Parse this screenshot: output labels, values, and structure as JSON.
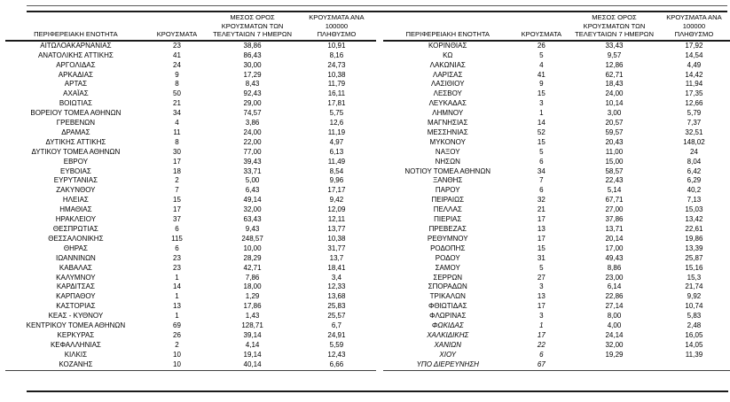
{
  "columns": {
    "region": "ΠΕΡΙΦΕΡΕΙΑΚΗ ΕΝΟΤΗΤΑ",
    "cases": "ΚΡΟΥΣΜΑΤΑ",
    "avg7": "ΜΕΣΟΣ ΟΡΟΣ\nΚΡΟΥΣΜΑΤΩΝ ΤΩΝ\nΤΕΛΕΥΤΑΙΩΝ 7 ΗΜΕΡΩΝ",
    "per100k": "ΚΡΟΥΣΜΑΤΑ ΑΝΑ 100000\nΠΛΗΘΥΣΜΟ"
  },
  "left_table": {
    "rows": [
      {
        "region": "ΑΙΤΩΛΟΑΚΑΡΝΑΝΙΑΣ",
        "cases": "23",
        "avg7": "38,86",
        "per100k": "10,91"
      },
      {
        "region": "ΑΝΑΤΟΛΙΚΗΣ ΑΤΤΙΚΗΣ",
        "cases": "41",
        "avg7": "86,43",
        "per100k": "8,16"
      },
      {
        "region": "ΑΡΓΟΛΙΔΑΣ",
        "cases": "24",
        "avg7": "30,00",
        "per100k": "24,73"
      },
      {
        "region": "ΑΡΚΑΔΙΑΣ",
        "cases": "9",
        "avg7": "17,29",
        "per100k": "10,38"
      },
      {
        "region": "ΑΡΤΑΣ",
        "cases": "8",
        "avg7": "8,43",
        "per100k": "11,79"
      },
      {
        "region": "ΑΧΑΪΑΣ",
        "cases": "50",
        "avg7": "92,43",
        "per100k": "16,11"
      },
      {
        "region": "ΒΟΙΩΤΙΑΣ",
        "cases": "21",
        "avg7": "29,00",
        "per100k": "17,81"
      },
      {
        "region": "ΒΟΡΕΙΟΥ ΤΟΜΕΑ ΑΘΗΝΩΝ",
        "cases": "34",
        "avg7": "74,57",
        "per100k": "5,75"
      },
      {
        "region": "ΓΡΕΒΕΝΩΝ",
        "cases": "4",
        "avg7": "3,86",
        "per100k": "12,6"
      },
      {
        "region": "ΔΡΑΜΑΣ",
        "cases": "11",
        "avg7": "24,00",
        "per100k": "11,19"
      },
      {
        "region": "ΔΥΤΙΚΗΣ ΑΤΤΙΚΗΣ",
        "cases": "8",
        "avg7": "22,00",
        "per100k": "4,97"
      },
      {
        "region": "ΔΥΤΙΚΟΥ ΤΟΜΕΑ ΑΘΗΝΩΝ",
        "cases": "30",
        "avg7": "77,00",
        "per100k": "6,13"
      },
      {
        "region": "ΕΒΡΟΥ",
        "cases": "17",
        "avg7": "39,43",
        "per100k": "11,49"
      },
      {
        "region": "ΕΥΒΟΙΑΣ",
        "cases": "18",
        "avg7": "33,71",
        "per100k": "8,54"
      },
      {
        "region": "ΕΥΡΥΤΑΝΙΑΣ",
        "cases": "2",
        "avg7": "5,00",
        "per100k": "9,96"
      },
      {
        "region": "ΖΑΚΥΝΘΟΥ",
        "cases": "7",
        "avg7": "6,43",
        "per100k": "17,17"
      },
      {
        "region": "ΗΛΕΙΑΣ",
        "cases": "15",
        "avg7": "49,14",
        "per100k": "9,42"
      },
      {
        "region": "ΗΜΑΘΙΑΣ",
        "cases": "17",
        "avg7": "32,00",
        "per100k": "12,09"
      },
      {
        "region": "ΗΡΑΚΛΕΙΟΥ",
        "cases": "37",
        "avg7": "63,43",
        "per100k": "12,11"
      },
      {
        "region": "ΘΕΣΠΡΩΤΙΑΣ",
        "cases": "6",
        "avg7": "9,43",
        "per100k": "13,77"
      },
      {
        "region": "ΘΕΣΣΑΛΟΝΙΚΗΣ",
        "cases": "115",
        "avg7": "248,57",
        "per100k": "10,38"
      },
      {
        "region": "ΘΗΡΑΣ",
        "cases": "6",
        "avg7": "10,00",
        "per100k": "31,77"
      },
      {
        "region": "ΙΩΑΝΝΙΝΩΝ",
        "cases": "23",
        "avg7": "28,29",
        "per100k": "13,7"
      },
      {
        "region": "ΚΑΒΑΛΑΣ",
        "cases": "23",
        "avg7": "42,71",
        "per100k": "18,41"
      },
      {
        "region": "ΚΑΛΥΜΝΟΥ",
        "cases": "1",
        "avg7": "7,86",
        "per100k": "3,4"
      },
      {
        "region": "ΚΑΡΔΙΤΣΑΣ",
        "cases": "14",
        "avg7": "18,00",
        "per100k": "12,33"
      },
      {
        "region": "ΚΑΡΠΑΘΟΥ",
        "cases": "1",
        "avg7": "1,29",
        "per100k": "13,68"
      },
      {
        "region": "ΚΑΣΤΟΡΙΑΣ",
        "cases": "13",
        "avg7": "17,86",
        "per100k": "25,83"
      },
      {
        "region": "ΚΕΑΣ - ΚΥΘΝΟΥ",
        "cases": "1",
        "avg7": "1,43",
        "per100k": "25,57"
      },
      {
        "region": "ΚΕΝΤΡΙΚΟΥ ΤΟΜΕΑ ΑΘΗΝΩΝ",
        "cases": "69",
        "avg7": "128,71",
        "per100k": "6,7"
      },
      {
        "region": "ΚΕΡΚΥΡΑΣ",
        "cases": "26",
        "avg7": "39,14",
        "per100k": "24,91"
      },
      {
        "region": "ΚΕΦΑΛΛΗΝΙΑΣ",
        "cases": "2",
        "avg7": "4,14",
        "per100k": "5,59"
      },
      {
        "region": "ΚΙΛΚΙΣ",
        "cases": "10",
        "avg7": "19,14",
        "per100k": "12,43"
      },
      {
        "region": "ΚΟΖΑΝΗΣ",
        "cases": "10",
        "avg7": "40,14",
        "per100k": "6,66"
      }
    ]
  },
  "right_table": {
    "rows": [
      {
        "region": "ΚΟΡΙΝΘΙΑΣ",
        "cases": "26",
        "avg7": "33,43",
        "per100k": "17,92"
      },
      {
        "region": "ΚΩ",
        "cases": "5",
        "avg7": "9,57",
        "per100k": "14,54"
      },
      {
        "region": "ΛΑΚΩΝΙΑΣ",
        "cases": "4",
        "avg7": "12,86",
        "per100k": "4,49"
      },
      {
        "region": "ΛΑΡΙΣΑΣ",
        "cases": "41",
        "avg7": "62,71",
        "per100k": "14,42"
      },
      {
        "region": "ΛΑΣΙΘΙΟΥ",
        "cases": "9",
        "avg7": "18,43",
        "per100k": "11,94"
      },
      {
        "region": "ΛΕΣΒΟΥ",
        "cases": "15",
        "avg7": "24,00",
        "per100k": "17,35"
      },
      {
        "region": "ΛΕΥΚΑΔΑΣ",
        "cases": "3",
        "avg7": "10,14",
        "per100k": "12,66"
      },
      {
        "region": "ΛΗΜΝΟΥ",
        "cases": "1",
        "avg7": "3,00",
        "per100k": "5,79"
      },
      {
        "region": "ΜΑΓΝΗΣΙΑΣ",
        "cases": "14",
        "avg7": "20,57",
        "per100k": "7,37"
      },
      {
        "region": "ΜΕΣΣΗΝΙΑΣ",
        "cases": "52",
        "avg7": "59,57",
        "per100k": "32,51"
      },
      {
        "region": "ΜΥΚΟΝΟΥ",
        "cases": "15",
        "avg7": "20,43",
        "per100k": "148,02"
      },
      {
        "region": "ΝΑΞΟΥ",
        "cases": "5",
        "avg7": "11,00",
        "per100k": "24"
      },
      {
        "region": "ΝΗΣΩΝ",
        "cases": "6",
        "avg7": "15,00",
        "per100k": "8,04"
      },
      {
        "region": "ΝΟΤΙΟΥ ΤΟΜΕΑ ΑΘΗΝΩΝ",
        "cases": "34",
        "avg7": "58,57",
        "per100k": "6,42"
      },
      {
        "region": "ΞΑΝΘΗΣ",
        "cases": "7",
        "avg7": "22,43",
        "per100k": "6,29"
      },
      {
        "region": "ΠΑΡΟΥ",
        "cases": "6",
        "avg7": "5,14",
        "per100k": "40,2"
      },
      {
        "region": "ΠΕΙΡΑΙΩΣ",
        "cases": "32",
        "avg7": "67,71",
        "per100k": "7,13"
      },
      {
        "region": "ΠΕΛΛΑΣ",
        "cases": "21",
        "avg7": "27,00",
        "per100k": "15,03"
      },
      {
        "region": "ΠΙΕΡΙΑΣ",
        "cases": "17",
        "avg7": "37,86",
        "per100k": "13,42"
      },
      {
        "region": "ΠΡΕΒΕΖΑΣ",
        "cases": "13",
        "avg7": "13,71",
        "per100k": "22,61"
      },
      {
        "region": "ΡΕΘΥΜΝΟΥ",
        "cases": "17",
        "avg7": "20,14",
        "per100k": "19,86"
      },
      {
        "region": "ΡΟΔΟΠΗΣ",
        "cases": "15",
        "avg7": "17,00",
        "per100k": "13,39"
      },
      {
        "region": "ΡΟΔΟΥ",
        "cases": "31",
        "avg7": "49,43",
        "per100k": "25,87"
      },
      {
        "region": "ΣΑΜΟΥ",
        "cases": "5",
        "avg7": "8,86",
        "per100k": "15,16"
      },
      {
        "region": "ΣΕΡΡΩΝ",
        "cases": "27",
        "avg7": "23,00",
        "per100k": "15,3"
      },
      {
        "region": "ΣΠΟΡΑΔΩΝ",
        "cases": "3",
        "avg7": "6,14",
        "per100k": "21,74"
      },
      {
        "region": "ΤΡΙΚΑΛΩΝ",
        "cases": "13",
        "avg7": "22,86",
        "per100k": "9,92"
      },
      {
        "region": "ΦΘΙΩΤΙΔΑΣ",
        "cases": "17",
        "avg7": "27,14",
        "per100k": "10,74"
      },
      {
        "region": "ΦΛΩΡΙΝΑΣ",
        "cases": "3",
        "avg7": "8,00",
        "per100k": "5,83"
      },
      {
        "region": "ΦΩΚΙΔΑΣ",
        "cases": "1",
        "avg7": "4,00",
        "per100k": "2,48",
        "italic": true
      },
      {
        "region": "ΧΑΛΚΙΔΙΚΗΣ",
        "cases": "17",
        "avg7": "24,14",
        "per100k": "16,05",
        "italic": true
      },
      {
        "region": "ΧΑΝΙΩΝ",
        "cases": "22",
        "avg7": "32,00",
        "per100k": "14,05",
        "italic": true
      },
      {
        "region": "ΧΙΟΥ",
        "cases": "6",
        "avg7": "19,29",
        "per100k": "11,39",
        "italic": true
      },
      {
        "region": "ΥΠΟ ΔΙΕΡΕΥΝΗΣΗ",
        "cases": "67",
        "avg7": "",
        "per100k": "",
        "italic": true
      }
    ]
  }
}
